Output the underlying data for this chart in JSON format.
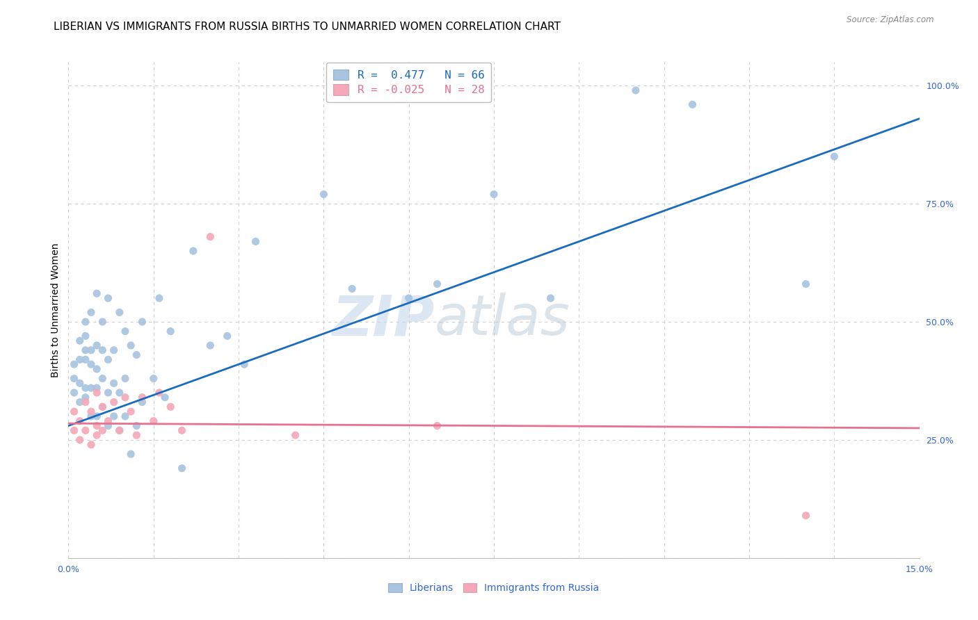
{
  "title": "LIBERIAN VS IMMIGRANTS FROM RUSSIA BIRTHS TO UNMARRIED WOMEN CORRELATION CHART",
  "source": "Source: ZipAtlas.com",
  "ylabel": "Births to Unmarried Women",
  "xlim": [
    0,
    0.15
  ],
  "ylim": [
    0,
    1.05
  ],
  "xticks": [
    0.0,
    0.015,
    0.03,
    0.045,
    0.06,
    0.075,
    0.09,
    0.105,
    0.12,
    0.135,
    0.15
  ],
  "yticks_right": [
    0.0,
    0.25,
    0.5,
    0.75,
    1.0
  ],
  "yticklabels_right": [
    "",
    "25.0%",
    "50.0%",
    "75.0%",
    "100.0%"
  ],
  "blue_R": 0.477,
  "blue_N": 66,
  "pink_R": -0.025,
  "pink_N": 28,
  "blue_color": "#a8c4e0",
  "pink_color": "#f4a8b8",
  "blue_line_color": "#1a6bbf",
  "pink_line_color": "#e87090",
  "blue_line_x0": 0.0,
  "blue_line_y0": 0.28,
  "blue_line_x1": 0.15,
  "blue_line_y1": 0.93,
  "pink_line_x0": 0.0,
  "pink_line_y0": 0.285,
  "pink_line_x1": 0.15,
  "pink_line_y1": 0.275,
  "watermark": "ZIPatlas",
  "legend_labels": [
    "Liberians",
    "Immigrants from Russia"
  ],
  "blue_scatter_x": [
    0.001,
    0.001,
    0.001,
    0.002,
    0.002,
    0.002,
    0.002,
    0.003,
    0.003,
    0.003,
    0.003,
    0.003,
    0.003,
    0.004,
    0.004,
    0.004,
    0.004,
    0.004,
    0.005,
    0.005,
    0.005,
    0.005,
    0.005,
    0.006,
    0.006,
    0.006,
    0.006,
    0.007,
    0.007,
    0.007,
    0.007,
    0.008,
    0.008,
    0.008,
    0.009,
    0.009,
    0.009,
    0.01,
    0.01,
    0.01,
    0.011,
    0.011,
    0.012,
    0.012,
    0.013,
    0.013,
    0.015,
    0.016,
    0.017,
    0.018,
    0.02,
    0.022,
    0.025,
    0.028,
    0.031,
    0.033,
    0.045,
    0.05,
    0.06,
    0.065,
    0.075,
    0.085,
    0.1,
    0.11,
    0.13,
    0.135
  ],
  "blue_scatter_y": [
    0.35,
    0.38,
    0.41,
    0.33,
    0.37,
    0.42,
    0.46,
    0.34,
    0.36,
    0.42,
    0.44,
    0.47,
    0.5,
    0.3,
    0.36,
    0.41,
    0.44,
    0.52,
    0.3,
    0.36,
    0.4,
    0.45,
    0.56,
    0.32,
    0.38,
    0.44,
    0.5,
    0.28,
    0.35,
    0.42,
    0.55,
    0.3,
    0.37,
    0.44,
    0.27,
    0.35,
    0.52,
    0.3,
    0.38,
    0.48,
    0.22,
    0.45,
    0.28,
    0.43,
    0.33,
    0.5,
    0.38,
    0.55,
    0.34,
    0.48,
    0.19,
    0.65,
    0.45,
    0.47,
    0.41,
    0.67,
    0.77,
    0.57,
    0.55,
    0.58,
    0.77,
    0.55,
    0.99,
    0.96,
    0.58,
    0.85
  ],
  "pink_scatter_x": [
    0.001,
    0.001,
    0.002,
    0.002,
    0.003,
    0.003,
    0.004,
    0.004,
    0.005,
    0.005,
    0.005,
    0.006,
    0.006,
    0.007,
    0.008,
    0.009,
    0.01,
    0.011,
    0.012,
    0.013,
    0.015,
    0.016,
    0.018,
    0.02,
    0.025,
    0.04,
    0.065,
    0.13
  ],
  "pink_scatter_y": [
    0.27,
    0.31,
    0.25,
    0.29,
    0.27,
    0.33,
    0.24,
    0.31,
    0.26,
    0.28,
    0.35,
    0.27,
    0.32,
    0.29,
    0.33,
    0.27,
    0.34,
    0.31,
    0.26,
    0.34,
    0.29,
    0.35,
    0.32,
    0.27,
    0.68,
    0.26,
    0.28,
    0.09
  ],
  "grid_color": "#d0d0d0",
  "title_fontsize": 11,
  "axis_fontsize": 10,
  "background_color": "#ffffff"
}
